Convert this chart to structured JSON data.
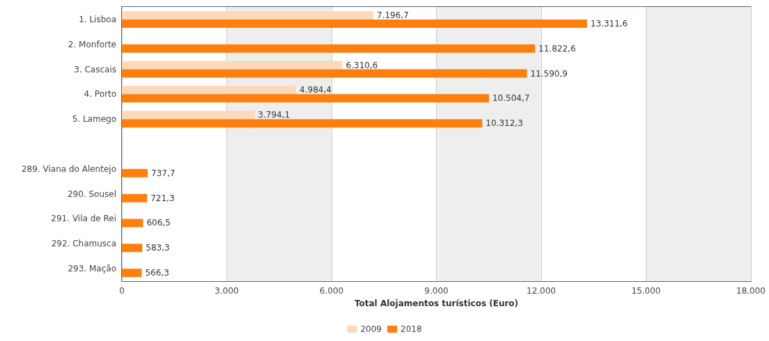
{
  "chart_data": {
    "type": "bar",
    "orientation": "horizontal",
    "xlabel": "Total Alojamentos turísticos (Euro)",
    "categories": [
      "1. Lisboa",
      "2. Monforte",
      "3. Cascais",
      "4. Porto",
      "5. Lamego",
      null,
      "289. Viana do Alentejo",
      "290. Sousel",
      "291. Vila de Rei",
      "292. Chamusca",
      "293. Mação"
    ],
    "series": [
      {
        "name": "2009",
        "color": "#fdd9bb",
        "values": [
          7196.7,
          null,
          6310.6,
          4984.4,
          3794.1,
          null,
          null,
          null,
          null,
          null,
          null
        ],
        "value_labels": [
          "7.196,7",
          null,
          "6.310,6",
          "4.984,4",
          "3.794,1",
          null,
          null,
          null,
          null,
          null,
          null
        ]
      },
      {
        "name": "2018",
        "color": "#ff7f0e",
        "values": [
          13311.6,
          11822.6,
          11590.9,
          10504.7,
          10312.3,
          null,
          737.7,
          721.3,
          606.5,
          583.3,
          566.3
        ],
        "value_labels": [
          "13.311,6",
          "11.822,6",
          "11.590,9",
          "10.504,7",
          "10.312,3",
          null,
          "737,7",
          "721,3",
          "606,5",
          "583,3",
          "566,3"
        ]
      }
    ],
    "xlim": [
      0,
      18000
    ],
    "xticks": [
      0,
      {
        "value": 3000,
        "label": "3.000"
      },
      {
        "value": 6000,
        "label": "6.000"
      },
      {
        "value": 9000,
        "label": "9.000"
      },
      {
        "value": 12000,
        "label": "12.000"
      },
      {
        "value": 15000,
        "label": "15.000"
      },
      {
        "value": 18000,
        "label": "18.000"
      }
    ],
    "grid": "x",
    "legend": "bottom"
  }
}
